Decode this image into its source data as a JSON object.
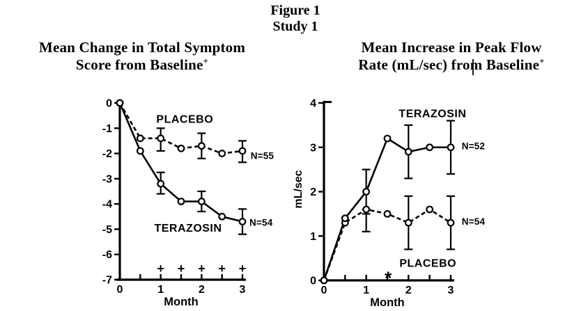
{
  "figure": {
    "title": "Figure 1",
    "subtitle": "Study 1"
  },
  "chart_data": [
    {
      "type": "line",
      "name": "symptom-score-chart",
      "title_line1": "Mean Change in Total Symptom",
      "title_line2": "Score from Baseline",
      "title_superscript": "+",
      "xlabel": "Month",
      "ylabel": "",
      "xlim": [
        0,
        3
      ],
      "ylim": [
        -7,
        0
      ],
      "x_ticks": [
        0.5,
        1,
        1.5,
        2,
        2.5,
        3
      ],
      "x_tick_labels": [
        0,
        1,
        2,
        3
      ],
      "y_tick_labels": [
        0,
        -1,
        -2,
        -3,
        -4,
        -5,
        -6,
        -7
      ],
      "x": [
        0,
        0.5,
        1,
        1.5,
        2,
        2.5,
        3
      ],
      "series": [
        {
          "name": "PLACEBO",
          "style": "dashed",
          "n_label": "N=55",
          "values": [
            0,
            -1.4,
            -1.4,
            -1.8,
            -1.7,
            -2.0,
            -1.9
          ],
          "error_bars": [
            {
              "x": 1,
              "lo": -1.9,
              "hi": -1.0
            },
            {
              "x": 2,
              "lo": -2.2,
              "hi": -1.2
            },
            {
              "x": 3,
              "lo": -2.35,
              "hi": -1.5
            }
          ]
        },
        {
          "name": "TERAZOSIN",
          "style": "solid",
          "n_label": "N=54",
          "values": [
            0,
            -1.9,
            -3.2,
            -3.9,
            -3.9,
            -4.5,
            -4.7
          ],
          "error_bars": [
            {
              "x": 1,
              "lo": -3.6,
              "hi": -2.75
            },
            {
              "x": 2,
              "lo": -4.3,
              "hi": -3.5
            },
            {
              "x": 3,
              "lo": -5.2,
              "hi": -4.2
            }
          ]
        }
      ],
      "annotations": [
        {
          "kind": "series-label",
          "text": "PLACEBO",
          "x": 1.59,
          "y": -0.63
        },
        {
          "kind": "series-label",
          "text": "TERAZOSIN",
          "x": 1.67,
          "y": -4.95
        },
        {
          "kind": "n-label",
          "text": "N=55",
          "x": 3.2,
          "y": -2.09
        },
        {
          "kind": "n-label",
          "text": "N=54",
          "x": 3.17,
          "y": -4.74
        },
        {
          "kind": "plus-marker",
          "text": "+",
          "x": 1.0,
          "y": -6.55
        },
        {
          "kind": "plus-marker",
          "text": "+",
          "x": 1.5,
          "y": -6.55
        },
        {
          "kind": "plus-marker",
          "text": "+",
          "x": 2.0,
          "y": -6.55
        },
        {
          "kind": "plus-marker",
          "text": "+",
          "x": 2.5,
          "y": -6.55
        },
        {
          "kind": "plus-marker",
          "text": "+",
          "x": 3.0,
          "y": -6.55
        }
      ]
    },
    {
      "type": "line",
      "name": "peak-flow-chart",
      "title_line1": "Mean Increase in Peak Flow",
      "title_line2": "Rate (mL/sec) from Baseline",
      "title_superscript": "+",
      "xlabel": "Month",
      "ylabel": "mL/sec",
      "xlim": [
        0,
        3
      ],
      "ylim": [
        0,
        4
      ],
      "x_ticks": [
        0.5,
        1,
        1.5,
        2,
        2.5,
        3
      ],
      "x_tick_labels": [
        0,
        1,
        2,
        3
      ],
      "y_tick_labels": [
        0,
        1,
        2,
        3,
        4
      ],
      "x": [
        0,
        0.5,
        1,
        1.5,
        2,
        2.5,
        3
      ],
      "series": [
        {
          "name": "PLACEBO",
          "style": "dashed",
          "n_label": "N=54",
          "values": [
            0,
            1.3,
            1.6,
            1.5,
            1.3,
            1.6,
            1.3
          ],
          "error_bars": [
            {
              "x": 1,
              "lo": 1.1,
              "hi": 1.6
            },
            {
              "x": 2,
              "lo": 0.7,
              "hi": 1.9
            },
            {
              "x": 3,
              "lo": 0.7,
              "hi": 1.9
            }
          ]
        },
        {
          "name": "TERAZOSIN",
          "style": "solid",
          "n_label": "N=52",
          "values": [
            0,
            1.4,
            2.0,
            3.2,
            2.9,
            3.0,
            3.0
          ],
          "error_bars": [
            {
              "x": 1,
              "lo": 1.5,
              "hi": 2.5
            },
            {
              "x": 2,
              "lo": 2.3,
              "hi": 3.5
            },
            {
              "x": 3,
              "lo": 2.4,
              "hi": 3.6
            }
          ]
        }
      ],
      "annotations": [
        {
          "kind": "series-label",
          "text": "TERAZOSIN",
          "x": 2.57,
          "y": 3.77
        },
        {
          "kind": "series-label",
          "text": "PLACEBO",
          "x": 2.46,
          "y": 0.39
        },
        {
          "kind": "n-label",
          "text": "N=52",
          "x": 3.26,
          "y": 3.03
        },
        {
          "kind": "n-label",
          "text": "N=54",
          "x": 3.26,
          "y": 1.33
        },
        {
          "kind": "star-marker",
          "text": "*",
          "x": 1.52,
          "y": 0.06
        }
      ]
    }
  ]
}
